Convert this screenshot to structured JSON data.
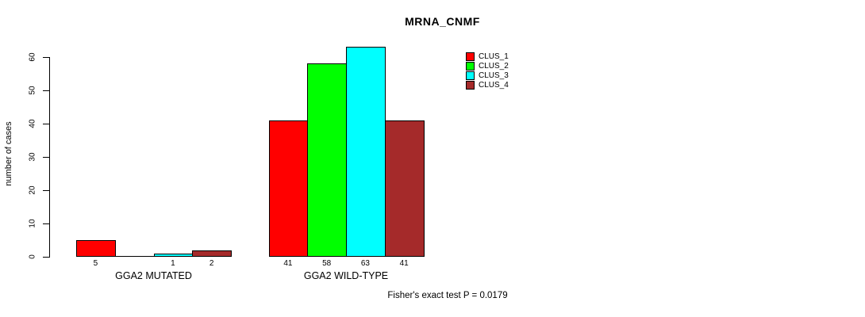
{
  "chart_data": {
    "type": "bar",
    "title": "MRNA_CNMF",
    "ylabel": "number of cases",
    "xlabel": "",
    "footer": "Fisher's exact test P = 0.0179",
    "ylim": [
      0,
      60
    ],
    "yticks": [
      0,
      10,
      20,
      30,
      40,
      50,
      60
    ],
    "grid": false,
    "legend_position": "top-right-inside",
    "series": [
      {
        "name": "CLUS_1",
        "color": "#ff0000"
      },
      {
        "name": "CLUS_2",
        "color": "#00ff00"
      },
      {
        "name": "CLUS_3",
        "color": "#00ffff"
      },
      {
        "name": "CLUS_4",
        "color": "#a52a2a"
      }
    ],
    "groups": [
      {
        "label": "GGA2 MUTATED",
        "values": [
          5,
          0,
          1,
          2
        ],
        "bar_labels": [
          "5",
          "",
          "1",
          "2"
        ]
      },
      {
        "label": "GGA2 WILD-TYPE",
        "values": [
          41,
          58,
          63,
          41
        ],
        "bar_labels": [
          "41",
          "58",
          "63",
          "41"
        ]
      }
    ]
  }
}
